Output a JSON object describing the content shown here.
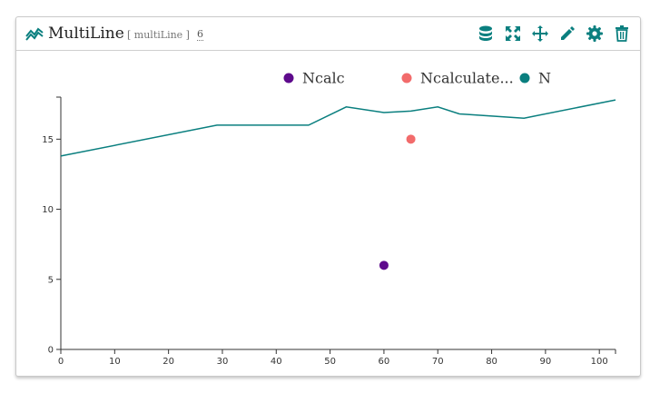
{
  "widget": {
    "title": "MultiLine",
    "subtitle": "[ multiLine ]",
    "count": "6",
    "accent_color": "#0a7f7f",
    "toolbar": [
      {
        "name": "database-icon"
      },
      {
        "name": "expand-icon"
      },
      {
        "name": "move-icon"
      },
      {
        "name": "edit-icon"
      },
      {
        "name": "settings-icon"
      },
      {
        "name": "trash-icon"
      }
    ]
  },
  "chart_data": {
    "type": "line",
    "legend_position": "top",
    "grid": false,
    "xlim": [
      0,
      103
    ],
    "ylim": [
      0,
      18
    ],
    "x_ticks": [
      0,
      10,
      20,
      30,
      40,
      50,
      60,
      70,
      80,
      90,
      100
    ],
    "y_ticks": [
      0,
      5,
      10,
      15
    ],
    "series": [
      {
        "name": "Ncalc",
        "kind": "scatter",
        "color": "#5e0a8c",
        "points": [
          [
            60,
            6
          ]
        ]
      },
      {
        "name": "Ncalculate...",
        "kind": "scatter",
        "color": "#f26b6b",
        "points": [
          [
            65,
            15
          ]
        ]
      },
      {
        "name": "N",
        "kind": "line",
        "color": "#0a7f7f",
        "points": [
          [
            0,
            13.8
          ],
          [
            29,
            16
          ],
          [
            46,
            16
          ],
          [
            53,
            17.3
          ],
          [
            60,
            16.9
          ],
          [
            65,
            17
          ],
          [
            70,
            17.3
          ],
          [
            74,
            16.8
          ],
          [
            86,
            16.5
          ],
          [
            103,
            17.8
          ]
        ]
      }
    ]
  }
}
